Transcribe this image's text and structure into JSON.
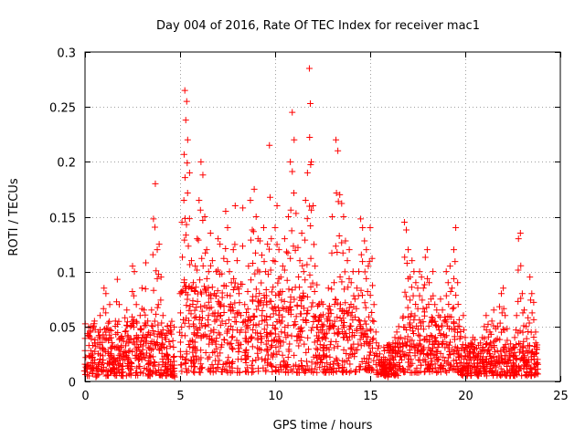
{
  "chart_data": {
    "type": "scatter",
    "title": "Day 004 of 2016, Rate Of TEC Index for receiver mac1",
    "xlabel": "GPS time / hours",
    "ylabel": "ROTI / TECUs",
    "xlim": [
      0,
      25
    ],
    "ylim": [
      0,
      0.3
    ],
    "xticks": [
      0,
      5,
      10,
      15,
      20,
      25
    ],
    "xtick_labels": [
      "0",
      "5",
      "10",
      "15",
      "20",
      "25"
    ],
    "yticks": [
      0,
      0.05,
      0.1,
      0.15,
      0.2,
      0.25,
      0.3
    ],
    "ytick_labels": [
      "0",
      "0.05",
      "0.1",
      "0.15",
      "0.2",
      "0.25",
      "0.3"
    ],
    "grid": true,
    "marker": "+",
    "color": "#ff0000",
    "series": [
      {
        "name": "ROTI",
        "points": [
          [
            0.0,
            0.028
          ],
          [
            0.1,
            0.015
          ],
          [
            0.2,
            0.042
          ],
          [
            0.3,
            0.05
          ],
          [
            0.4,
            0.022
          ],
          [
            0.5,
            0.035
          ],
          [
            0.6,
            0.012
          ],
          [
            0.7,
            0.045
          ],
          [
            0.8,
            0.06
          ],
          [
            0.9,
            0.03
          ],
          [
            1.0,
            0.085
          ],
          [
            1.1,
            0.08
          ],
          [
            1.2,
            0.048
          ],
          [
            1.3,
            0.07
          ],
          [
            1.4,
            0.03
          ],
          [
            1.5,
            0.02
          ],
          [
            1.6,
            0.055
          ],
          [
            1.7,
            0.093
          ],
          [
            1.8,
            0.07
          ],
          [
            1.9,
            0.04
          ],
          [
            2.0,
            0.025
          ],
          [
            2.1,
            0.058
          ],
          [
            2.2,
            0.065
          ],
          [
            2.3,
            0.035
          ],
          [
            2.4,
            0.05
          ],
          [
            2.5,
            0.105
          ],
          [
            2.6,
            0.1
          ],
          [
            2.7,
            0.07
          ],
          [
            2.8,
            0.04
          ],
          [
            2.9,
            0.06
          ],
          [
            3.0,
            0.085
          ],
          [
            3.1,
            0.065
          ],
          [
            3.2,
            0.108
          ],
          [
            3.3,
            0.055
          ],
          [
            3.4,
            0.03
          ],
          [
            3.5,
            0.065
          ],
          [
            3.6,
            0.148
          ],
          [
            3.7,
            0.18
          ],
          [
            3.8,
            0.12
          ],
          [
            3.9,
            0.125
          ],
          [
            4.0,
            0.095
          ],
          [
            4.1,
            0.06
          ],
          [
            4.2,
            0.04
          ],
          [
            4.3,
            0.03
          ],
          [
            4.4,
            0.02
          ],
          [
            4.5,
            0.018
          ],
          [
            4.6,
            0.015
          ],
          [
            4.7,
            0.012
          ],
          [
            5.0,
            0.08
          ],
          [
            5.1,
            0.145
          ],
          [
            5.2,
            0.165
          ],
          [
            5.25,
            0.265
          ],
          [
            5.3,
            0.238
          ],
          [
            5.35,
            0.255
          ],
          [
            5.4,
            0.22
          ],
          [
            5.5,
            0.19
          ],
          [
            5.6,
            0.11
          ],
          [
            5.7,
            0.09
          ],
          [
            5.8,
            0.105
          ],
          [
            5.9,
            0.13
          ],
          [
            6.0,
            0.165
          ],
          [
            6.1,
            0.2
          ],
          [
            6.2,
            0.188
          ],
          [
            6.3,
            0.15
          ],
          [
            6.4,
            0.12
          ],
          [
            6.5,
            0.1
          ],
          [
            6.6,
            0.135
          ],
          [
            6.7,
            0.11
          ],
          [
            6.8,
            0.08
          ],
          [
            6.9,
            0.1
          ],
          [
            7.0,
            0.13
          ],
          [
            7.1,
            0.125
          ],
          [
            7.2,
            0.098
          ],
          [
            7.3,
            0.112
          ],
          [
            7.4,
            0.155
          ],
          [
            7.5,
            0.14
          ],
          [
            7.6,
            0.1
          ],
          [
            7.7,
            0.09
          ],
          [
            7.8,
            0.12
          ],
          [
            7.9,
            0.16
          ],
          [
            8.0,
            0.11
          ],
          [
            8.1,
            0.08
          ],
          [
            8.2,
            0.06
          ],
          [
            8.3,
            0.158
          ],
          [
            8.4,
            0.07
          ],
          [
            8.5,
            0.05
          ],
          [
            8.6,
            0.105
          ],
          [
            8.7,
            0.165
          ],
          [
            8.8,
            0.138
          ],
          [
            8.9,
            0.175
          ],
          [
            9.0,
            0.15
          ],
          [
            9.1,
            0.13
          ],
          [
            9.2,
            0.128
          ],
          [
            9.3,
            0.115
          ],
          [
            9.4,
            0.14
          ],
          [
            9.5,
            0.1
          ],
          [
            9.6,
            0.125
          ],
          [
            9.7,
            0.215
          ],
          [
            9.8,
            0.13
          ],
          [
            9.9,
            0.11
          ],
          [
            10.0,
            0.14
          ],
          [
            10.1,
            0.16
          ],
          [
            10.2,
            0.12
          ],
          [
            10.3,
            0.095
          ],
          [
            10.4,
            0.105
          ],
          [
            10.5,
            0.13
          ],
          [
            10.6,
            0.118
          ],
          [
            10.7,
            0.15
          ],
          [
            10.8,
            0.2
          ],
          [
            10.9,
            0.245
          ],
          [
            11.0,
            0.22
          ],
          [
            11.1,
            0.153
          ],
          [
            11.2,
            0.122
          ],
          [
            11.3,
            0.11
          ],
          [
            11.4,
            0.135
          ],
          [
            11.5,
            0.1
          ],
          [
            11.6,
            0.165
          ],
          [
            11.7,
            0.19
          ],
          [
            11.8,
            0.285
          ],
          [
            11.85,
            0.253
          ],
          [
            11.9,
            0.2
          ],
          [
            12.0,
            0.16
          ],
          [
            12.1,
            0.105
          ],
          [
            12.2,
            0.088
          ],
          [
            12.3,
            0.07
          ],
          [
            12.4,
            0.06
          ],
          [
            12.5,
            0.05
          ],
          [
            12.6,
            0.04
          ],
          [
            12.7,
            0.03
          ],
          [
            12.8,
            0.085
          ],
          [
            12.9,
            0.065
          ],
          [
            13.0,
            0.15
          ],
          [
            13.1,
            0.09
          ],
          [
            13.2,
            0.22
          ],
          [
            13.3,
            0.21
          ],
          [
            13.4,
            0.17
          ],
          [
            13.5,
            0.162
          ],
          [
            13.6,
            0.15
          ],
          [
            13.7,
            0.128
          ],
          [
            13.8,
            0.11
          ],
          [
            13.9,
            0.12
          ],
          [
            14.0,
            0.09
          ],
          [
            14.1,
            0.1
          ],
          [
            14.2,
            0.075
          ],
          [
            14.3,
            0.085
          ],
          [
            14.4,
            0.1
          ],
          [
            14.5,
            0.148
          ],
          [
            14.6,
            0.14
          ],
          [
            14.7,
            0.128
          ],
          [
            14.8,
            0.12
          ],
          [
            14.9,
            0.105
          ],
          [
            15.0,
            0.14
          ],
          [
            15.1,
            0.112
          ],
          [
            15.2,
            0.07
          ],
          [
            15.3,
            0.045
          ],
          [
            15.4,
            0.03
          ],
          [
            15.5,
            0.025
          ],
          [
            15.6,
            0.02
          ],
          [
            15.7,
            0.018
          ],
          [
            15.8,
            0.015
          ],
          [
            15.9,
            0.012
          ],
          [
            16.0,
            0.02
          ],
          [
            16.1,
            0.03
          ],
          [
            16.2,
            0.035
          ],
          [
            16.3,
            0.04
          ],
          [
            16.4,
            0.045
          ],
          [
            16.5,
            0.05
          ],
          [
            16.6,
            0.04
          ],
          [
            16.7,
            0.035
          ],
          [
            16.8,
            0.145
          ],
          [
            16.9,
            0.138
          ],
          [
            17.0,
            0.12
          ],
          [
            17.1,
            0.095
          ],
          [
            17.2,
            0.11
          ],
          [
            17.3,
            0.1
          ],
          [
            17.4,
            0.09
          ],
          [
            17.5,
            0.085
          ],
          [
            17.6,
            0.1
          ],
          [
            17.7,
            0.095
          ],
          [
            17.8,
            0.085
          ],
          [
            17.9,
            0.113
          ],
          [
            18.0,
            0.12
          ],
          [
            18.1,
            0.09
          ],
          [
            18.2,
            0.075
          ],
          [
            18.3,
            0.1
          ],
          [
            18.4,
            0.07
          ],
          [
            18.5,
            0.065
          ],
          [
            18.6,
            0.06
          ],
          [
            18.7,
            0.075
          ],
          [
            18.8,
            0.065
          ],
          [
            18.9,
            0.055
          ],
          [
            19.0,
            0.1
          ],
          [
            19.1,
            0.09
          ],
          [
            19.2,
            0.105
          ],
          [
            19.3,
            0.085
          ],
          [
            19.4,
            0.12
          ],
          [
            19.5,
            0.14
          ],
          [
            19.6,
            0.09
          ],
          [
            19.7,
            0.05
          ],
          [
            19.8,
            0.03
          ],
          [
            19.9,
            0.06
          ],
          [
            20.0,
            0.04
          ],
          [
            20.1,
            0.03
          ],
          [
            20.2,
            0.025
          ],
          [
            20.3,
            0.035
          ],
          [
            20.4,
            0.04
          ],
          [
            20.5,
            0.038
          ],
          [
            20.6,
            0.03
          ],
          [
            20.7,
            0.025
          ],
          [
            20.8,
            0.035
          ],
          [
            20.9,
            0.04
          ],
          [
            21.0,
            0.05
          ],
          [
            21.1,
            0.06
          ],
          [
            21.2,
            0.052
          ],
          [
            21.3,
            0.045
          ],
          [
            21.4,
            0.055
          ],
          [
            21.5,
            0.065
          ],
          [
            21.6,
            0.048
          ],
          [
            21.7,
            0.05
          ],
          [
            21.8,
            0.068
          ],
          [
            21.9,
            0.08
          ],
          [
            22.0,
            0.085
          ],
          [
            22.1,
            0.06
          ],
          [
            22.2,
            0.048
          ],
          [
            22.3,
            0.03
          ],
          [
            22.4,
            0.025
          ],
          [
            22.5,
            0.03
          ],
          [
            22.6,
            0.04
          ],
          [
            22.7,
            0.06
          ],
          [
            22.8,
            0.13
          ],
          [
            22.9,
            0.135
          ],
          [
            23.0,
            0.08
          ],
          [
            23.1,
            0.065
          ],
          [
            23.2,
            0.05
          ],
          [
            23.3,
            0.058
          ],
          [
            23.4,
            0.095
          ],
          [
            23.5,
            0.08
          ],
          [
            23.6,
            0.072
          ],
          [
            23.7,
            0.045
          ],
          [
            23.8,
            0.02
          ]
        ],
        "base_band": [
          [
            0.0,
            4.7,
            0.005,
            0.055
          ],
          [
            5.0,
            8.2,
            0.008,
            0.09
          ],
          [
            8.4,
            11.8,
            0.008,
            0.085
          ],
          [
            11.9,
            14.3,
            0.008,
            0.075
          ],
          [
            14.4,
            15.2,
            0.01,
            0.06
          ],
          [
            15.3,
            16.6,
            0.005,
            0.035
          ],
          [
            16.7,
            19.8,
            0.008,
            0.06
          ],
          [
            19.8,
            23.8,
            0.005,
            0.035
          ]
        ]
      }
    ]
  }
}
